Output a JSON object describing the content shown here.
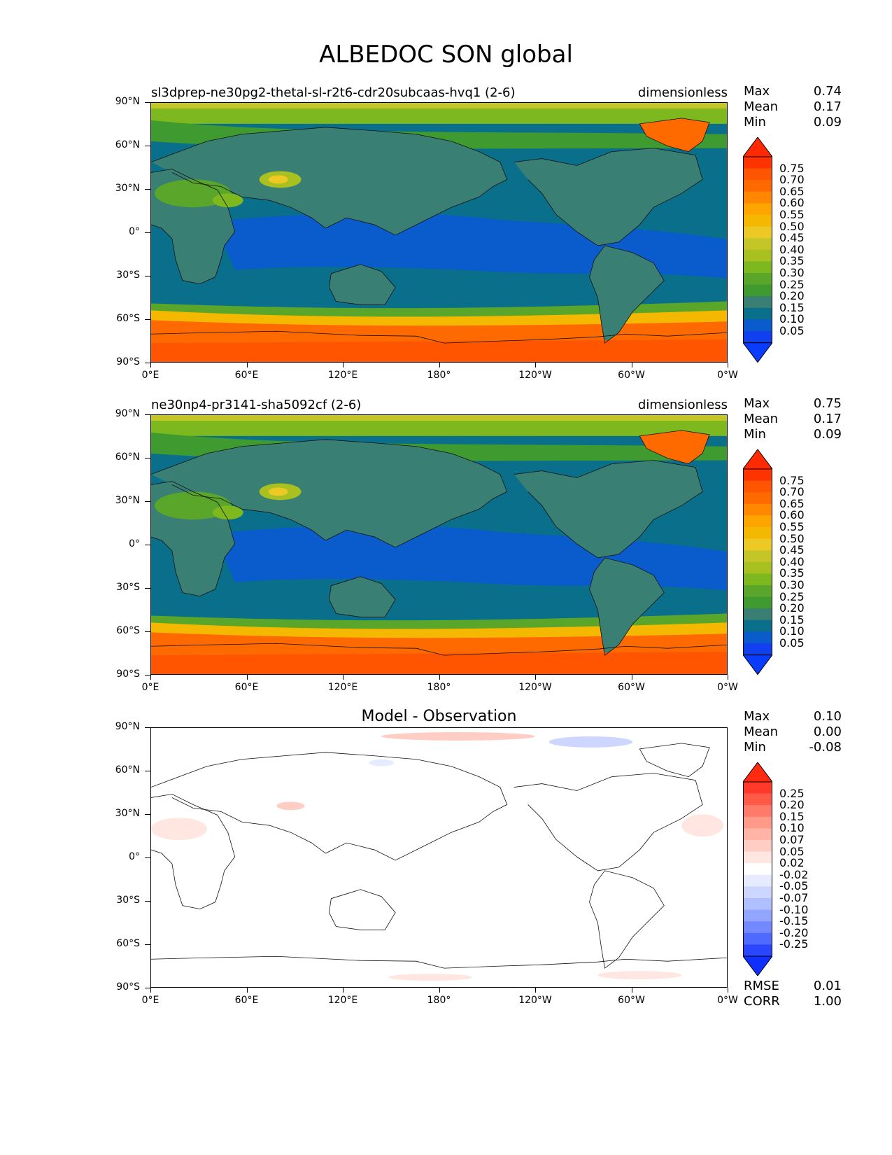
{
  "title": "ALBEDOC SON global",
  "x_ticks": [
    "0°E",
    "60°E",
    "120°E",
    "180°",
    "120°W",
    "60°W",
    "0°W"
  ],
  "y_ticks": [
    "90°N",
    "60°N",
    "30°N",
    "0°",
    "30°S",
    "60°S",
    "90°S"
  ],
  "panels": [
    {
      "left_label": "sl3dprep-ne30pg2-thetal-sl-r2t6-cdr20subcaas-hvq1 (2-6)",
      "right_label": "dimensionless",
      "stats": [
        {
          "k": "Max",
          "v": "0.74"
        },
        {
          "k": "Mean",
          "v": "0.17"
        },
        {
          "k": "Min",
          "v": "0.09"
        }
      ],
      "colorbar": {
        "labels": [
          "0.75",
          "0.70",
          "0.65",
          "0.60",
          "0.55",
          "0.50",
          "0.45",
          "0.40",
          "0.35",
          "0.30",
          "0.25",
          "0.20",
          "0.15",
          "0.10",
          "0.05"
        ],
        "colors": [
          "#ff3300",
          "#ff5500",
          "#ff6a00",
          "#ff8800",
          "#ffa500",
          "#f5b800",
          "#ecc924",
          "#c4c628",
          "#a8c020",
          "#7cb81e",
          "#5aa62a",
          "#3f9a30",
          "#3a7f74",
          "#0a6f8a",
          "#0a5ccc",
          "#1040f0"
        ],
        "top_color": "#ff2a00",
        "bottom_color": "#0a3cff"
      }
    },
    {
      "left_label": "ne30np4-pr3141-sha5092cf (2-6)",
      "right_label": "dimensionless",
      "stats": [
        {
          "k": "Max",
          "v": "0.75"
        },
        {
          "k": "Mean",
          "v": "0.17"
        },
        {
          "k": "Min",
          "v": "0.09"
        }
      ],
      "colorbar": {
        "labels": [
          "0.75",
          "0.70",
          "0.65",
          "0.60",
          "0.55",
          "0.50",
          "0.45",
          "0.40",
          "0.35",
          "0.30",
          "0.25",
          "0.20",
          "0.15",
          "0.10",
          "0.05"
        ],
        "colors": [
          "#ff3300",
          "#ff5500",
          "#ff6a00",
          "#ff8800",
          "#ffa500",
          "#f5b800",
          "#ecc924",
          "#c4c628",
          "#a8c020",
          "#7cb81e",
          "#5aa62a",
          "#3f9a30",
          "#3a7f74",
          "#0a6f8a",
          "#0a5ccc",
          "#1040f0"
        ],
        "top_color": "#ff2a00",
        "bottom_color": "#0a3cff"
      }
    },
    {
      "center_label": "Model - Observation",
      "stats": [
        {
          "k": "Max",
          "v": "0.10"
        },
        {
          "k": "Mean",
          "v": "0.00"
        },
        {
          "k": "Min",
          "v": "-0.08"
        }
      ],
      "bottom_stats": [
        {
          "k": "RMSE",
          "v": "0.01"
        },
        {
          "k": "CORR",
          "v": "1.00"
        }
      ],
      "colorbar": {
        "labels": [
          "0.25",
          "0.20",
          "0.15",
          "0.10",
          "0.07",
          "0.05",
          "0.02",
          "-0.02",
          "-0.05",
          "-0.07",
          "-0.10",
          "-0.15",
          "-0.20",
          "-0.25"
        ],
        "colors": [
          "#ff3a2a",
          "#ff5a48",
          "#ff7a68",
          "#ff9a88",
          "#ffb4a6",
          "#ffcdc4",
          "#ffe6e0",
          "#ffffff",
          "#e6ebff",
          "#ccd6ff",
          "#b0bfff",
          "#93a6ff",
          "#7289ff",
          "#4f6aff",
          "#2a46ff"
        ],
        "top_color": "#ff2a10",
        "bottom_color": "#1030ff"
      }
    }
  ]
}
